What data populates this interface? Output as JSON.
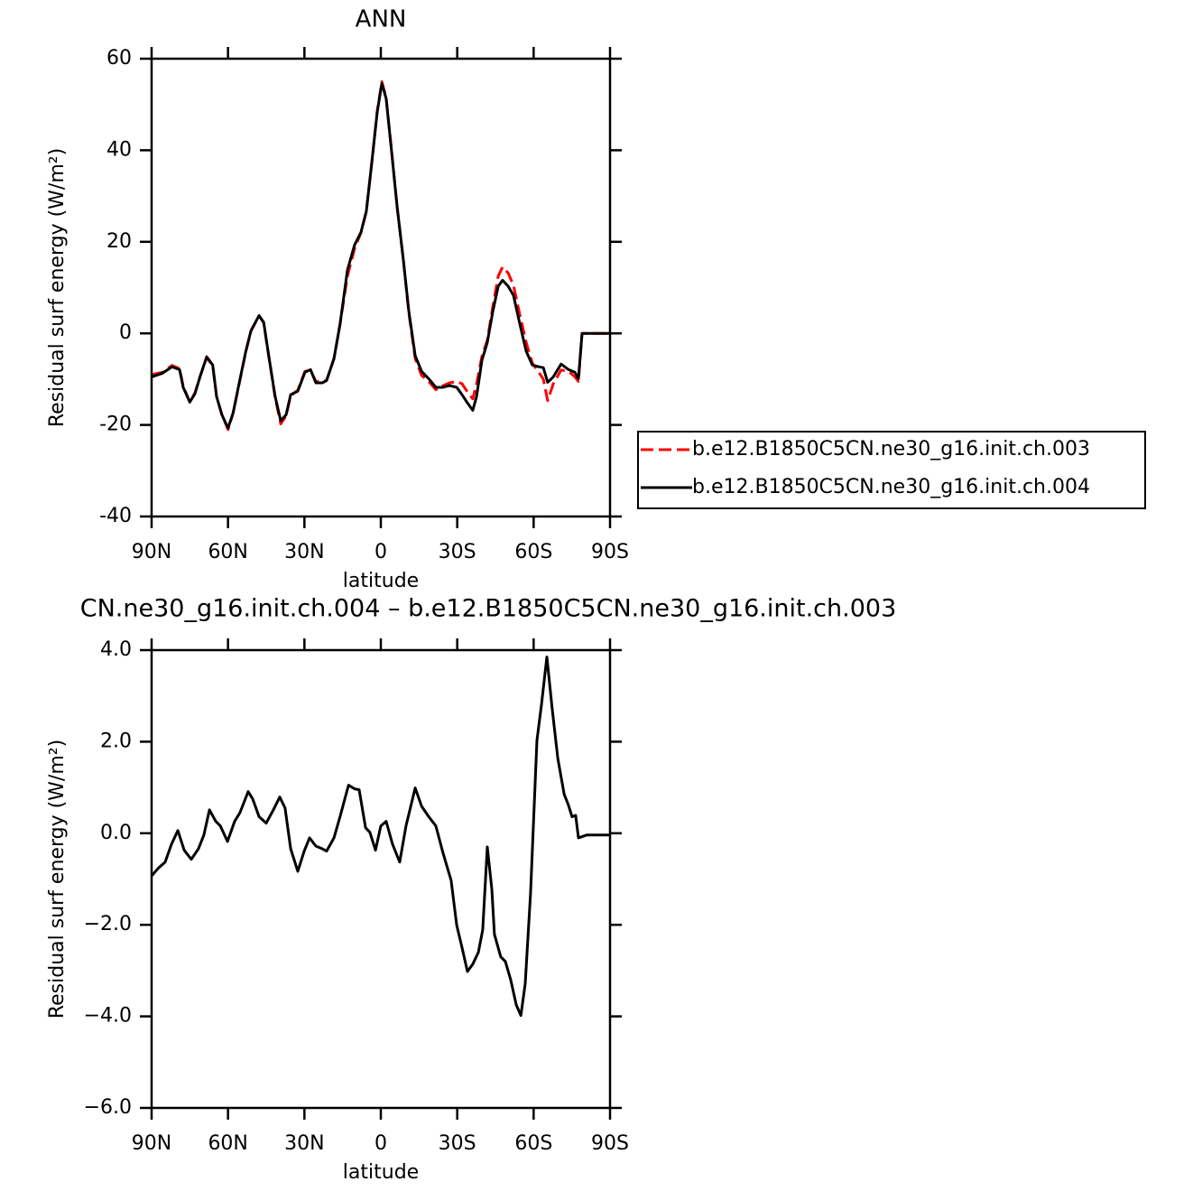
{
  "chart_data": [
    {
      "type": "line",
      "title": "ANN",
      "xlabel": "latitude",
      "ylabel": "Residual surf energy (W/m²)",
      "x": [
        90,
        85.7,
        82,
        79,
        77.6,
        75,
        73,
        71,
        68.4,
        66,
        64.5,
        62.4,
        60,
        58,
        55.6,
        53,
        51,
        47.8,
        46,
        44,
        41.5,
        39.3,
        37.2,
        35.4,
        32.6,
        29.8,
        27.6,
        25.5,
        23,
        21.3,
        18.4,
        16,
        13.1,
        10.3,
        7.8,
        5.7,
        3.5,
        1.4,
        -0.4,
        -2.1,
        -4.3,
        -6.4,
        -8.9,
        -11,
        -13.5,
        -16,
        -18.8,
        -21.6,
        -24.1,
        -27,
        -29.8,
        -31.9,
        -34,
        -36.1,
        -37.6,
        -39.7,
        -41.8,
        -44,
        -46.1,
        -47.8,
        -50,
        -52.1,
        -54.6,
        -57.1,
        -59.5,
        -62,
        -63.8,
        -65.5,
        -67.7,
        -70.8,
        -73.7,
        -76.2,
        -77.6,
        -79,
        -90
      ],
      "series": [
        {
          "name": "b.e12.B1850C5CN.ne30_g16.init.ch.003",
          "color": "#ff0000",
          "linestyle": "dashed",
          "values": [
            -9,
            -8.5,
            -7,
            -7.7,
            -11.5,
            -15,
            -13,
            -9.5,
            -5.3,
            -7,
            -13.8,
            -17.8,
            -21,
            -17.4,
            -11,
            -4,
            0.5,
            3.8,
            2.3,
            -5,
            -14,
            -19.8,
            -18,
            -13.6,
            -12.4,
            -8.3,
            -8,
            -10.5,
            -10.5,
            -10.3,
            -5.5,
            2,
            12.5,
            18.5,
            22,
            26.6,
            37.5,
            48.5,
            55,
            51.5,
            39.5,
            27.6,
            15.8,
            4.5,
            -5.5,
            -9.2,
            -10.5,
            -12.3,
            -11.5,
            -10.8,
            -10.5,
            -11,
            -12.8,
            -14.3,
            -11,
            -5,
            -1.5,
            6,
            12.5,
            14.5,
            13.2,
            10.5,
            4,
            -2,
            -6.5,
            -8.5,
            -10,
            -14.7,
            -11,
            -8,
            -8.3,
            -9.5,
            -10.5,
            0,
            0
          ]
        },
        {
          "name": "b.e12.B1850C5CN.ne30_g16.init.ch.004",
          "color": "#000000",
          "linestyle": "solid",
          "values": [
            -9.5,
            -8.7,
            -7.3,
            -7.9,
            -11.8,
            -15,
            -13.2,
            -9.5,
            -5.1,
            -6.9,
            -13.8,
            -17.8,
            -20.7,
            -17.4,
            -10.8,
            -3.9,
            0.6,
            3.9,
            2.4,
            -4.9,
            -13.8,
            -19.1,
            -17.8,
            -13.4,
            -12.6,
            -8.5,
            -7.9,
            -10.8,
            -10.8,
            -10.3,
            -5.5,
            2,
            13.8,
            19.3,
            22.1,
            26.6,
            37.5,
            48.3,
            54.6,
            51.3,
            39.4,
            27.6,
            15.8,
            4.9,
            -4.9,
            -8.3,
            -9.9,
            -11.8,
            -11.8,
            -11.4,
            -11.8,
            -13.4,
            -15.2,
            -16.8,
            -13.8,
            -5.9,
            -2,
            4.9,
            10.3,
            11.6,
            10.3,
            8.3,
            2,
            -3.9,
            -6.9,
            -7.3,
            -7.5,
            -10.7,
            -9.5,
            -6.7,
            -7.9,
            -8.5,
            -9.9,
            0,
            0
          ]
        }
      ],
      "xlim": [
        90,
        -90
      ],
      "xticks": [
        {
          "value": 90,
          "label": "90N"
        },
        {
          "value": 60,
          "label": "60N"
        },
        {
          "value": 30,
          "label": "30N"
        },
        0,
        {
          "value": -30,
          "label": "30S"
        },
        {
          "value": -60,
          "label": "60S"
        },
        {
          "value": -90,
          "label": "90S"
        }
      ],
      "ylim": [
        -40,
        60
      ],
      "yticks": [
        -40,
        -20,
        0,
        20,
        40,
        60
      ],
      "legend": "right"
    },
    {
      "type": "line",
      "title": "CN.ne30_g16.init.ch.004 – b.e12.B1850C5CN.ne30_g16.init.ch.003",
      "xlabel": "latitude",
      "ylabel": "Residual surf energy (W/m²)",
      "x": [
        90,
        87.5,
        84.7,
        82.2,
        79.7,
        77.2,
        74.4,
        71.6,
        69.5,
        67.3,
        64.8,
        63,
        60.2,
        57.4,
        55.3,
        52.1,
        50.3,
        47.8,
        45,
        42.2,
        39.7,
        37.6,
        35.4,
        32.6,
        30.1,
        28,
        25.5,
        23,
        21.3,
        18.4,
        16,
        12.7,
        10.3,
        8.5,
        6,
        4.3,
        2.1,
        0,
        -2.1,
        -4.6,
        -7.4,
        -9.9,
        -13.5,
        -16,
        -18.8,
        -21.6,
        -24.4,
        -27.6,
        -29.8,
        -31.9,
        -34,
        -36.1,
        -38.3,
        -40,
        -41.8,
        -43.6,
        -44.6,
        -47.1,
        -48.9,
        -51,
        -53.2,
        -55,
        -56.7,
        -58.8,
        -61.3,
        -63.1,
        -65.2,
        -67.3,
        -69.5,
        -72,
        -73.7,
        -75.1,
        -76.5,
        -77.6,
        -80.8,
        -90
      ],
      "series": [
        {
          "color": "#000000",
          "linestyle": "solid",
          "values": [
            -0.93,
            -0.77,
            -0.63,
            -0.24,
            0.06,
            -0.37,
            -0.57,
            -0.34,
            -0.04,
            0.51,
            0.26,
            0.16,
            -0.18,
            0.26,
            0.45,
            0.91,
            0.75,
            0.36,
            0.22,
            0.51,
            0.79,
            0.55,
            -0.34,
            -0.83,
            -0.39,
            -0.1,
            -0.28,
            -0.34,
            -0.39,
            -0.1,
            0.36,
            1.05,
            0.97,
            0.95,
            0.12,
            0.02,
            -0.37,
            0.16,
            0.26,
            -0.24,
            -0.63,
            0.16,
            0.99,
            0.59,
            0.36,
            0.16,
            -0.43,
            -1.03,
            -2.01,
            -2.5,
            -3.02,
            -2.86,
            -2.6,
            -2.11,
            -0.3,
            -1.22,
            -2.21,
            -2.7,
            -2.8,
            -3.2,
            -3.75,
            -3.98,
            -3.29,
            -1.32,
            2.03,
            2.82,
            3.85,
            2.72,
            1.64,
            0.85,
            0.61,
            0.36,
            0.39,
            -0.1,
            -0.04,
            -0.04
          ]
        }
      ],
      "xlim": [
        90,
        -90
      ],
      "xticks": [
        {
          "value": 90,
          "label": "90N"
        },
        {
          "value": 60,
          "label": "60N"
        },
        {
          "value": 30,
          "label": "30N"
        },
        0,
        {
          "value": -30,
          "label": "30S"
        },
        {
          "value": -60,
          "label": "60S"
        },
        {
          "value": -90,
          "label": "90S"
        }
      ],
      "ylim": [
        -6,
        4
      ],
      "yticks": [
        {
          "value": -6,
          "label": "−6.0"
        },
        {
          "value": -4,
          "label": "−4.0"
        },
        {
          "value": -2,
          "label": "−2.0"
        },
        {
          "value": 0,
          "label": "0.0"
        },
        {
          "value": 2,
          "label": "2.0"
        },
        {
          "value": 4,
          "label": "4.0"
        }
      ]
    }
  ]
}
